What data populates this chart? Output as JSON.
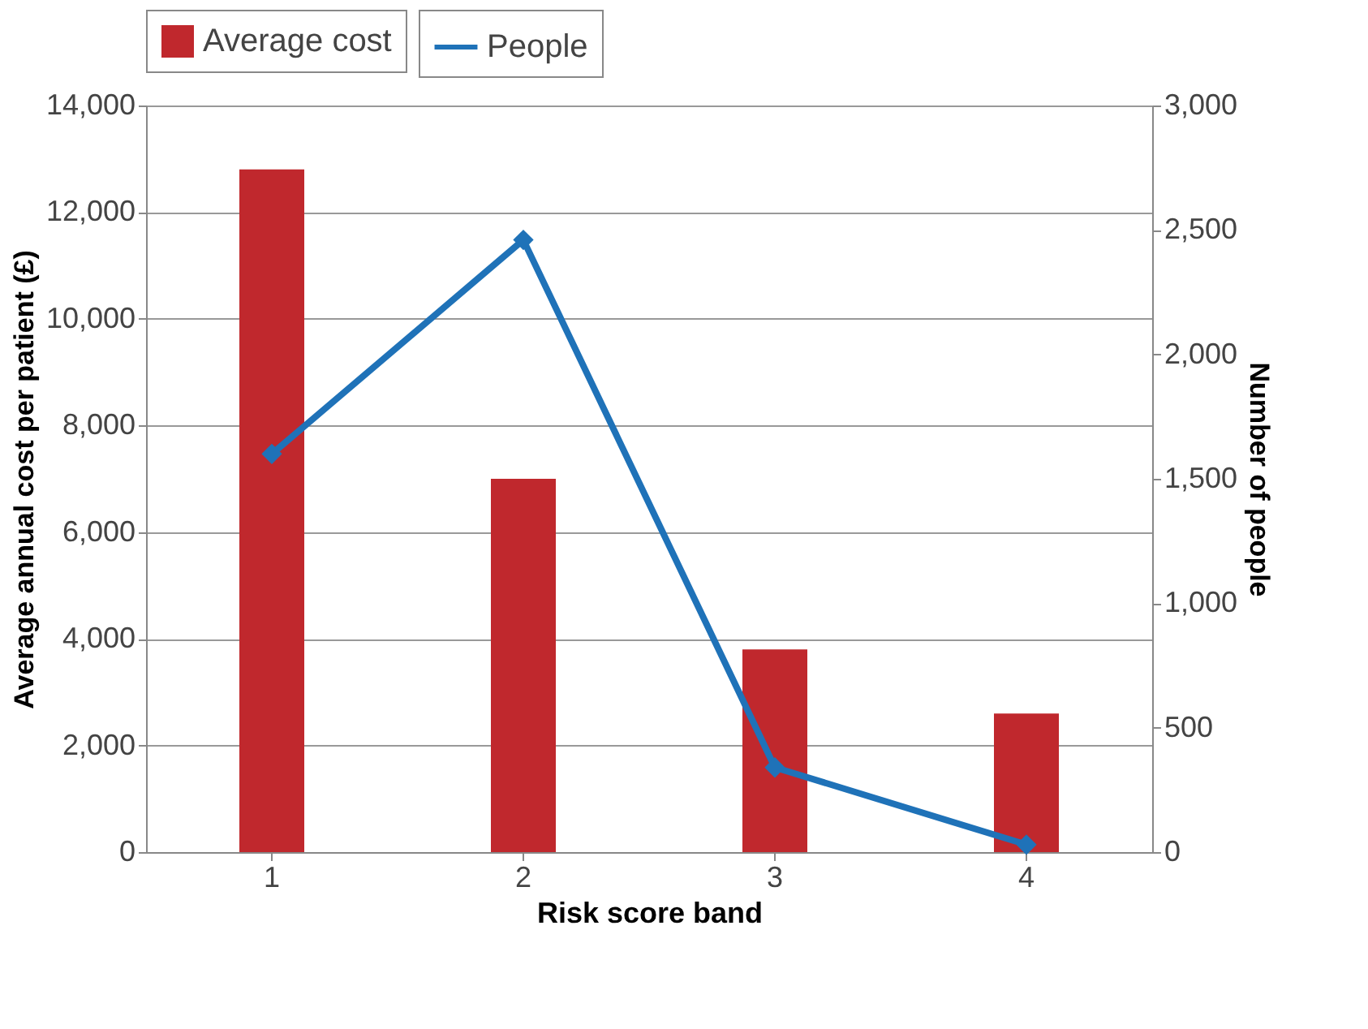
{
  "chart_data": {
    "type": "bar",
    "xlabel": "Risk score band",
    "ylabel": "Average annual cost per patient (£)",
    "y2label": "Number of people",
    "categories": [
      "1",
      "2",
      "3",
      "4"
    ],
    "series": [
      {
        "name": "Average cost",
        "color": "#c0282d",
        "values": [
          12800,
          7000,
          3800,
          2600
        ]
      },
      {
        "name": "People",
        "color": "#1f72b8",
        "type": "line",
        "axis": "y2",
        "marker": "diamond",
        "values": [
          1600,
          2460,
          340,
          30
        ]
      }
    ],
    "ylim": [
      0,
      14000
    ],
    "yticks": [
      0,
      {
        "value": 2000,
        "label": "2,000"
      },
      {
        "value": 4000,
        "label": "4,000"
      },
      {
        "value": 6000,
        "label": "6,000"
      },
      {
        "value": 8000,
        "label": "8,000"
      },
      {
        "value": 10000,
        "label": "10,000"
      },
      {
        "value": 12000,
        "label": "12,000"
      },
      {
        "value": 14000,
        "label": "14,000"
      }
    ],
    "y2lim": [
      0,
      3000
    ],
    "y2ticks": [
      0,
      500,
      {
        "value": 1000,
        "label": "1,000"
      },
      {
        "value": 1500,
        "label": "1,500"
      },
      {
        "value": 2000,
        "label": "2,000"
      },
      {
        "value": 2500,
        "label": "2,500"
      },
      {
        "value": 3000,
        "label": "3,000"
      }
    ],
    "grid": "y",
    "legend": "top"
  }
}
